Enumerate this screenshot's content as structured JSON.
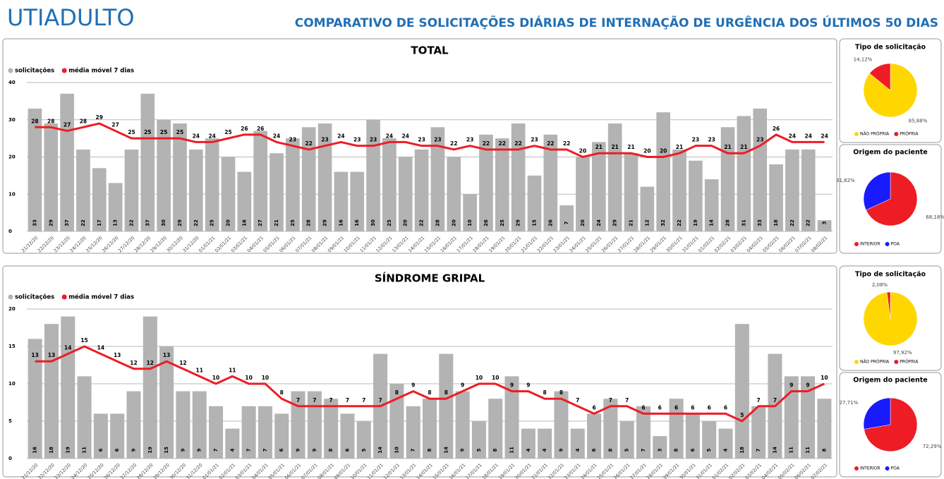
{
  "header": {
    "brand": "UTIADULTO",
    "title": "COMPARATIVO DE SOLICITAÇÕES DIÁRIAS DE INTERNAÇÃO DE URGÊNCIA DOS ÚLTIMOS 50 DIAS"
  },
  "chart_data": [
    {
      "type": "combo",
      "title": "TOTAL",
      "ylim": [
        0,
        40
      ],
      "yticks": [
        0,
        10,
        20,
        30,
        40
      ],
      "grid": true,
      "categories": [
        "21/12/20",
        "22/12/20",
        "23/12/20",
        "24/12/20",
        "25/12/20",
        "26/12/20",
        "27/12/20",
        "28/12/20",
        "29/12/20",
        "30/12/20",
        "31/12/20",
        "01/01/21",
        "02/01/21",
        "03/01/21",
        "04/01/21",
        "05/01/21",
        "06/01/21",
        "07/01/21",
        "08/01/21",
        "09/01/21",
        "10/01/21",
        "11/01/21",
        "12/01/21",
        "13/01/21",
        "14/01/21",
        "15/01/21",
        "16/01/21",
        "17/01/21",
        "18/01/21",
        "19/01/21",
        "20/01/21",
        "21/01/21",
        "22/01/21",
        "23/01/21",
        "24/01/21",
        "25/01/21",
        "26/01/21",
        "27/01/21",
        "28/01/21",
        "29/01/21",
        "30/01/21",
        "31/01/21",
        "01/02/21",
        "02/02/21",
        "03/02/21",
        "04/02/21",
        "05/02/21",
        "06/02/21",
        "07/02/21",
        "08/02/21"
      ],
      "series": [
        {
          "name": "solicitações",
          "type": "bar",
          "color": "#b3b3b3",
          "values": [
            33,
            29,
            37,
            22,
            17,
            13,
            22,
            37,
            30,
            29,
            22,
            25,
            20,
            16,
            27,
            21,
            25,
            28,
            29,
            16,
            16,
            30,
            25,
            20,
            22,
            28,
            20,
            10,
            26,
            25,
            29,
            15,
            26,
            7,
            20,
            24,
            29,
            21,
            12,
            32,
            22,
            19,
            14,
            28,
            31,
            33,
            18,
            22,
            22,
            3
          ]
        },
        {
          "name": "média móvel 7 dias",
          "type": "line",
          "color": "#ee1c25",
          "values": [
            28,
            28,
            27,
            28,
            29,
            27,
            25,
            25,
            25,
            25,
            24,
            24,
            25,
            26,
            26,
            24,
            23,
            22,
            23,
            24,
            23,
            23,
            24,
            24,
            23,
            23,
            22,
            23,
            22,
            22,
            22,
            23,
            22,
            22,
            20,
            21,
            21,
            21,
            20,
            20,
            21,
            23,
            23,
            21,
            21,
            23,
            26,
            24,
            24,
            24
          ]
        }
      ]
    },
    {
      "type": "pie",
      "title": "Tipo de solicitação",
      "categories": [
        "NÃO PRÓPRIA",
        "PRÓPRIA"
      ],
      "values": [
        85.88,
        14.12
      ],
      "value_labels": [
        "85,88%",
        "14,12%"
      ],
      "colors": [
        "#ffd700",
        "#ee1c25"
      ]
    },
    {
      "type": "pie",
      "title": "Origem do paciente",
      "categories": [
        "INTERIOR",
        "POA"
      ],
      "values": [
        68.18,
        31.82
      ],
      "value_labels": [
        "68,18%",
        "31,82%"
      ],
      "colors": [
        "#ee1c25",
        "#1a1aff"
      ]
    },
    {
      "type": "combo",
      "title": "SÍNDROME GRIPAL",
      "ylim": [
        0,
        20
      ],
      "yticks": [
        0,
        5,
        10,
        15,
        20
      ],
      "grid": true,
      "categories": [
        "21/12/20",
        "22/12/20",
        "23/12/20",
        "24/12/20",
        "25/12/20",
        "26/12/20",
        "27/12/20",
        "28/12/20",
        "29/12/20",
        "30/12/20",
        "31/12/20",
        "01/01/21",
        "02/01/21",
        "03/01/21",
        "04/01/21",
        "05/01/21",
        "06/01/21",
        "07/01/21",
        "08/01/21",
        "09/01/21",
        "10/01/21",
        "11/01/21",
        "12/01/21",
        "13/01/21",
        "14/01/21",
        "15/01/21",
        "16/01/21",
        "17/01/21",
        "18/01/21",
        "19/01/21",
        "20/01/21",
        "21/01/21",
        "22/01/21",
        "23/01/21",
        "24/01/21",
        "25/01/21",
        "26/01/21",
        "27/01/21",
        "28/01/21",
        "29/01/21",
        "30/01/21",
        "31/01/21",
        "01/02/21",
        "02/02/21",
        "03/02/21",
        "04/02/21",
        "05/02/21",
        "06/02/21",
        "07/02/21"
      ],
      "series": [
        {
          "name": "solicitações",
          "type": "bar",
          "color": "#b3b3b3",
          "values": [
            16,
            18,
            19,
            11,
            6,
            6,
            9,
            19,
            15,
            9,
            9,
            7,
            4,
            7,
            7,
            6,
            9,
            9,
            8,
            6,
            5,
            14,
            10,
            7,
            8,
            14,
            9,
            5,
            8,
            11,
            4,
            4,
            9,
            4,
            6,
            8,
            5,
            7,
            3,
            8,
            6,
            5,
            4,
            18,
            7,
            14,
            11,
            11,
            8
          ]
        },
        {
          "name": "média móvel 7 dias",
          "type": "line",
          "color": "#ee1c25",
          "values": [
            13,
            13,
            14,
            15,
            14,
            13,
            12,
            12,
            13,
            12,
            11,
            10,
            11,
            10,
            10,
            8,
            7,
            7,
            7,
            7,
            7,
            7,
            8,
            9,
            8,
            8,
            9,
            10,
            10,
            9,
            9,
            8,
            8,
            7,
            6,
            7,
            7,
            6,
            6,
            6,
            6,
            6,
            6,
            5,
            7,
            7,
            9,
            9,
            10
          ]
        }
      ]
    },
    {
      "type": "pie",
      "title": "Tipo de solicitação",
      "categories": [
        "NÃO PRÓPRIA",
        "PRÓPRIA"
      ],
      "values": [
        97.92,
        2.08
      ],
      "value_labels": [
        "97,92%",
        "2,08%"
      ],
      "colors": [
        "#ffd700",
        "#ee1c25"
      ]
    },
    {
      "type": "pie",
      "title": "Origem do paciente",
      "categories": [
        "INTERIOR",
        "POA"
      ],
      "values": [
        72.29,
        27.71
      ],
      "value_labels": [
        "72,29%",
        "27,71%"
      ],
      "colors": [
        "#ee1c25",
        "#1a1aff"
      ]
    }
  ]
}
